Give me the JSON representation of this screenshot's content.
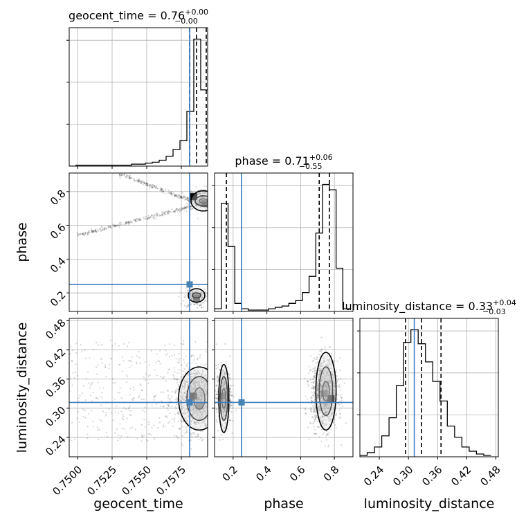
{
  "colors": {
    "truth": "#4682b4",
    "ink": "#000000",
    "grid": "#b0b0b0"
  },
  "chart_data": {
    "type": "corner",
    "parameters": [
      "geocent_time",
      "phase",
      "luminosity_distance"
    ],
    "titles": {
      "geocent_time": {
        "name": "geocent_time",
        "median": "0.76",
        "plus": "+0.00",
        "minus": "−0.00"
      },
      "phase": {
        "name": "phase",
        "median": "0.71",
        "plus": "+0.06",
        "minus": "−0.55"
      },
      "luminosity_distance": {
        "name": "luminosity_distance",
        "median": "0.33",
        "plus": "+0.04",
        "minus": "−0.03"
      }
    },
    "axis_labels": {
      "x": [
        "geocent_time",
        "phase",
        "luminosity_distance"
      ],
      "y": [
        "",
        "phase",
        "luminosity_distance"
      ]
    },
    "ranges": {
      "geocent_time": [
        0.7494,
        0.7594
      ],
      "phase": [
        0.09,
        0.91
      ],
      "luminosity_distance": [
        0.2,
        0.485
      ]
    },
    "ticks": {
      "geocent_time": [
        0.75,
        0.7525,
        0.755,
        0.7575
      ],
      "geocent_time_labels": [
        "0.7500",
        "0.7525",
        "0.7550",
        "0.7575"
      ],
      "phase": [
        0.2,
        0.4,
        0.6,
        0.8
      ],
      "phase_labels": [
        "0.2",
        "0.4",
        "0.6",
        "0.8"
      ],
      "luminosity_distance": [
        0.24,
        0.3,
        0.36,
        0.42,
        0.48
      ],
      "luminosity_distance_labels": [
        "0.24",
        "0.30",
        "0.36",
        "0.42",
        "0.48"
      ]
    },
    "truths": {
      "geocent_time": 0.7581,
      "phase": 0.25,
      "luminosity_distance": 0.312
    },
    "quantiles": {
      "geocent_time": [
        0.7581,
        0.7586,
        0.7593
      ],
      "phase": [
        0.16,
        0.71,
        0.77
      ],
      "luminosity_distance": [
        0.294,
        0.327,
        0.367
      ]
    },
    "histograms": {
      "geocent_time": {
        "bins": [
          0.7494,
          0.7499,
          0.7504,
          0.7509,
          0.7514,
          0.7519,
          0.7524,
          0.7529,
          0.7534,
          0.7539,
          0.7544,
          0.7549,
          0.7554,
          0.7559,
          0.7564,
          0.7569,
          0.7574,
          0.7579,
          0.7584,
          0.7589,
          0.7594
        ],
        "counts": [
          0,
          1,
          1,
          1,
          1,
          1,
          1,
          1,
          1,
          2,
          2,
          3,
          4,
          6,
          10,
          17,
          26,
          56,
          130,
          78
        ]
      },
      "phase": {
        "bins": [
          0.09,
          0.13,
          0.17,
          0.21,
          0.25,
          0.29,
          0.33,
          0.37,
          0.41,
          0.45,
          0.49,
          0.53,
          0.57,
          0.61,
          0.65,
          0.69,
          0.73,
          0.77,
          0.81,
          0.85,
          0.89
        ],
        "counts": [
          1,
          40,
          24,
          3,
          1,
          0.5,
          0.5,
          0.5,
          1,
          1.5,
          2,
          3,
          4,
          7,
          13,
          29,
          47,
          45,
          16,
          1
        ]
      },
      "luminosity_distance": {
        "bins": [
          0.2,
          0.215,
          0.23,
          0.245,
          0.26,
          0.275,
          0.29,
          0.305,
          0.32,
          0.335,
          0.35,
          0.365,
          0.38,
          0.395,
          0.41,
          0.425,
          0.44,
          0.455,
          0.47
        ],
        "counts": [
          1,
          3,
          7,
          15,
          28,
          51,
          82,
          91,
          81,
          68,
          54,
          40,
          22,
          14,
          7,
          4,
          2,
          1
        ]
      }
    },
    "scatter_clusters": [
      {
        "pair": [
          "geocent_time",
          "phase"
        ],
        "kind": "line",
        "from": [
          0.753,
          0.905
        ],
        "to": [
          0.7594,
          0.71
        ],
        "count": 260,
        "spread": 0.006
      },
      {
        "pair": [
          "geocent_time",
          "phase"
        ],
        "kind": "line",
        "from": [
          0.75,
          0.54
        ],
        "to": [
          0.7594,
          0.735
        ],
        "count": 300,
        "spread": 0.006
      },
      {
        "pair": [
          "geocent_time",
          "phase"
        ],
        "kind": "blob",
        "center": [
          0.759,
          0.76
        ],
        "sd": [
          0.0005,
          0.03
        ],
        "count": 220
      },
      {
        "pair": [
          "geocent_time",
          "phase"
        ],
        "kind": "blob",
        "center": [
          0.7585,
          0.17
        ],
        "sd": [
          0.0004,
          0.03
        ],
        "count": 160
      },
      {
        "pair": [
          "geocent_time",
          "luminosity_distance"
        ],
        "kind": "blob",
        "center": [
          0.7586,
          0.32
        ],
        "sd": [
          0.0008,
          0.033
        ],
        "count": 900
      },
      {
        "pair": [
          "geocent_time",
          "luminosity_distance"
        ],
        "kind": "uniform",
        "xr": [
          0.7494,
          0.7594
        ],
        "yr": [
          0.23,
          0.44
        ],
        "count": 350
      },
      {
        "pair": [
          "phase",
          "luminosity_distance"
        ],
        "kind": "blob",
        "center": [
          0.145,
          0.325
        ],
        "sd": [
          0.022,
          0.03
        ],
        "count": 550
      },
      {
        "pair": [
          "phase",
          "luminosity_distance"
        ],
        "kind": "blob",
        "center": [
          0.74,
          0.33
        ],
        "sd": [
          0.04,
          0.035
        ],
        "count": 1100
      }
    ],
    "contours": [
      {
        "pair": [
          "geocent_time",
          "phase"
        ],
        "center": [
          0.7591,
          0.745
        ],
        "radii": [
          [
            0.0003,
            0.012
          ],
          [
            0.0006,
            0.03
          ],
          [
            0.0009,
            0.06
          ]
        ]
      },
      {
        "pair": [
          "geocent_time",
          "phase"
        ],
        "center": [
          0.7586,
          0.185
        ],
        "radii": [
          [
            0.0003,
            0.015
          ],
          [
            0.0006,
            0.04
          ]
        ]
      },
      {
        "pair": [
          "geocent_time",
          "luminosity_distance"
        ],
        "center": [
          0.7588,
          0.32
        ],
        "radii": [
          [
            0.0004,
            0.022
          ],
          [
            0.0009,
            0.045
          ],
          [
            0.0015,
            0.065
          ]
        ]
      },
      {
        "pair": [
          "phase",
          "luminosity_distance"
        ],
        "center": [
          0.145,
          0.32
        ],
        "radii": [
          [
            0.012,
            0.02
          ],
          [
            0.022,
            0.045
          ],
          [
            0.03,
            0.07
          ]
        ]
      },
      {
        "pair": [
          "phase",
          "luminosity_distance"
        ],
        "center": [
          0.75,
          0.335
        ],
        "radii": [
          [
            0.02,
            0.02
          ],
          [
            0.04,
            0.05
          ],
          [
            0.06,
            0.08
          ]
        ]
      }
    ],
    "density_cells": [
      {
        "pair": [
          "geocent_time",
          "phase"
        ],
        "x": 0.7584,
        "y": 0.77,
        "shade": "#000000"
      },
      {
        "pair": [
          "geocent_time",
          "phase"
        ],
        "x": 0.7592,
        "y": 0.73,
        "shade": "#222222"
      },
      {
        "pair": [
          "geocent_time",
          "phase"
        ],
        "x": 0.7586,
        "y": 0.17,
        "shade": "#666666"
      },
      {
        "pair": [
          "geocent_time",
          "luminosity_distance"
        ],
        "x": 0.7584,
        "y": 0.325,
        "shade": "#000000"
      },
      {
        "pair": [
          "geocent_time",
          "luminosity_distance"
        ],
        "x": 0.7588,
        "y": 0.305,
        "shade": "#555555"
      },
      {
        "pair": [
          "phase",
          "luminosity_distance"
        ],
        "x": 0.14,
        "y": 0.325,
        "shade": "#222222"
      },
      {
        "pair": [
          "phase",
          "luminosity_distance"
        ],
        "x": 0.74,
        "y": 0.33,
        "shade": "#333333"
      },
      {
        "pair": [
          "phase",
          "luminosity_distance"
        ],
        "x": 0.78,
        "y": 0.32,
        "shade": "#000000"
      }
    ]
  }
}
